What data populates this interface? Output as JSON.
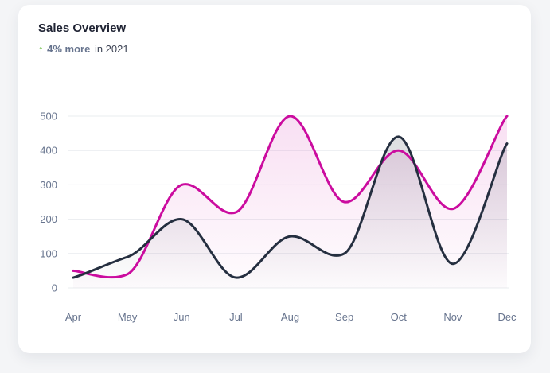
{
  "header": {
    "title": "Sales Overview",
    "arrow_icon": "arrow-up-icon",
    "delta": "4% more",
    "period": "in 2021"
  },
  "colors": {
    "series_1": "#cb0c9f",
    "series_2": "#252f40",
    "grid": "#e9ecef",
    "tick": "#67748e",
    "positive": "#4caf1a"
  },
  "chart_data": {
    "type": "area",
    "categories": [
      "Apr",
      "May",
      "Jun",
      "Jul",
      "Aug",
      "Sep",
      "Oct",
      "Nov",
      "Dec"
    ],
    "series": [
      {
        "values": [
          50,
          40,
          300,
          220,
          500,
          250,
          400,
          230,
          500
        ]
      },
      {
        "values": [
          30,
          90,
          200,
          30,
          150,
          100,
          440,
          70,
          420
        ]
      }
    ],
    "yticks": [
      0,
      100,
      200,
      300,
      400,
      500
    ],
    "ylim": [
      0,
      500
    ],
    "grid": true,
    "legend": "none"
  }
}
